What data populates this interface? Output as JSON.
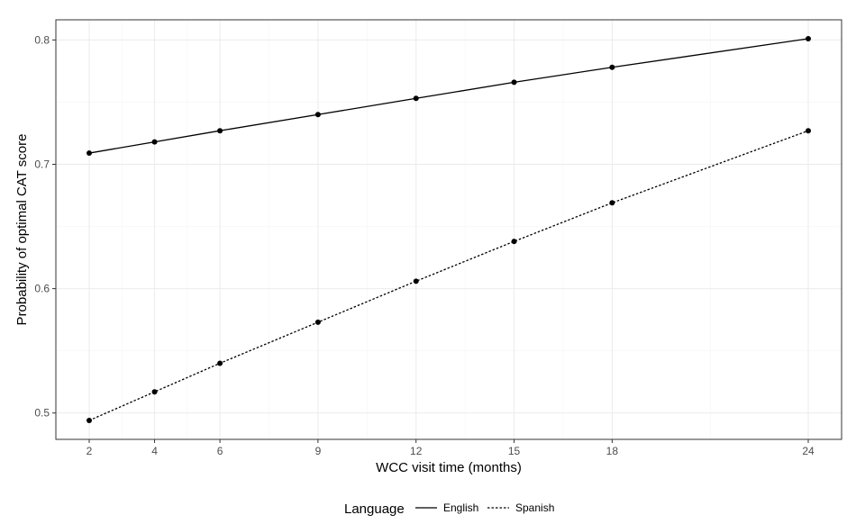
{
  "chart_data": {
    "type": "line",
    "title": "",
    "xlabel": "WCC visit time (months)",
    "ylabel": "Probability of optimal CAT score",
    "x": [
      2,
      4,
      6,
      9,
      12,
      15,
      18,
      24
    ],
    "x_tick_labels": [
      "2",
      "4",
      "6",
      "9",
      "12",
      "15",
      "18",
      "24"
    ],
    "y_ticks": [
      0.5,
      0.6,
      0.7,
      0.8
    ],
    "y_tick_labels": [
      "0.5",
      "0.6",
      "0.7",
      "0.8"
    ],
    "xlim": [
      2,
      24
    ],
    "ylim": [
      0.494,
      0.801
    ],
    "grid": true,
    "legend": {
      "title": "Language",
      "position": "bottom"
    },
    "series": [
      {
        "name": "English",
        "line_style": "solid",
        "values": [
          0.709,
          0.718,
          0.727,
          0.74,
          0.753,
          0.766,
          0.778,
          0.801
        ]
      },
      {
        "name": "Spanish",
        "line_style": "dotted",
        "values": [
          0.494,
          0.517,
          0.54,
          0.573,
          0.606,
          0.638,
          0.669,
          0.727
        ]
      }
    ],
    "colors": {
      "line": "#000000",
      "panel_border": "#333333",
      "grid": "#ebebeb"
    }
  }
}
